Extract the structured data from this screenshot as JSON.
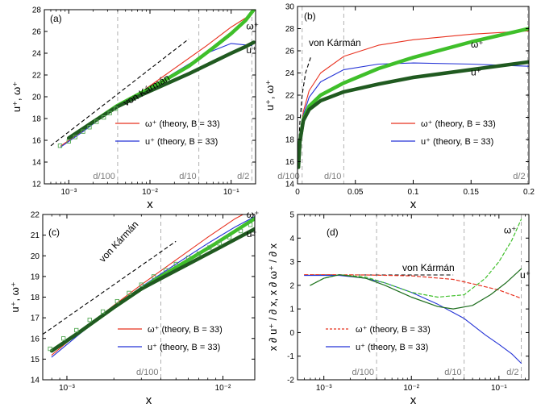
{
  "colors": {
    "red": "#e8311f",
    "blue": "#2433d6",
    "green_thick": "#3fbf2a",
    "green_dark": "#205a20",
    "green_theory": "#1e6e1e",
    "marker": "#55aa55",
    "dash_gray": "#b0b0b0",
    "ref_gray": "#7a7a7a"
  },
  "chart_data": [
    {
      "panel": "(a)",
      "type": "line",
      "xscale": "log",
      "xlim": [
        0.0005,
        0.2
      ],
      "ylim": [
        12,
        28
      ],
      "xlabel": "x",
      "ylabel": "u⁺, ω⁺",
      "xticks": [
        {
          "v": 0.001,
          "label": "10⁻³"
        },
        {
          "v": 0.01,
          "label": "10⁻²"
        },
        {
          "v": 0.1,
          "label": "10⁻¹"
        }
      ],
      "yticks": [
        12,
        14,
        16,
        18,
        20,
        22,
        24,
        26,
        28
      ],
      "vlines": [
        {
          "x": 0.004,
          "label": "d/100"
        },
        {
          "x": 0.04,
          "label": "d/10"
        },
        {
          "x": 0.18,
          "label": "d/2"
        }
      ],
      "reference": {
        "label": "von Kármán",
        "x": [
          0.0006,
          0.03
        ],
        "y": [
          15.5,
          25.3
        ]
      },
      "series": [
        {
          "name": "ω⁺ (theory, B = 33)",
          "style": "red",
          "x": [
            0.0008,
            0.0015,
            0.003,
            0.005,
            0.01,
            0.02,
            0.05,
            0.1,
            0.18
          ],
          "y": [
            15.5,
            16.9,
            18.5,
            19.5,
            21.0,
            22.6,
            24.7,
            26.4,
            27.6
          ]
        },
        {
          "name": "u⁺ (theory, B = 33)",
          "style": "blue",
          "x": [
            0.0008,
            0.0015,
            0.003,
            0.005,
            0.01,
            0.02,
            0.05,
            0.1,
            0.18
          ],
          "y": [
            15.4,
            16.8,
            18.5,
            19.4,
            20.8,
            22.2,
            24.0,
            24.9,
            24.7
          ]
        },
        {
          "name": "ω⁺",
          "style": "green_thick",
          "x": [
            0.001,
            0.002,
            0.004,
            0.008,
            0.015,
            0.03,
            0.06,
            0.1,
            0.15,
            0.19
          ],
          "y": [
            16.2,
            17.7,
            19.2,
            20.4,
            21.5,
            22.8,
            24.5,
            25.8,
            27.0,
            28.0
          ]
        },
        {
          "name": "u⁺",
          "style": "green_dark",
          "x": [
            0.001,
            0.002,
            0.004,
            0.008,
            0.015,
            0.03,
            0.06,
            0.1,
            0.15,
            0.19
          ],
          "y": [
            16.2,
            17.7,
            19.1,
            20.2,
            21.1,
            22.1,
            23.2,
            24.0,
            24.6,
            25.0
          ]
        },
        {
          "name": "markers",
          "style": "marker",
          "x": [
            0.00078,
            0.001,
            0.0012,
            0.0015,
            0.0018,
            0.0022,
            0.0027,
            0.0032,
            0.0038
          ],
          "y": [
            15.5,
            15.9,
            16.3,
            16.8,
            17.2,
            17.7,
            18.1,
            18.5,
            18.9
          ]
        }
      ],
      "legend": [
        "ω⁺ (theory, B = 33)",
        "u⁺ (theory, B = 33)"
      ],
      "curve_labels": [
        {
          "text": "ω⁺",
          "x": 0.14,
          "y": 26.2
        },
        {
          "text": "u⁺",
          "x": 0.14,
          "y": 24.0
        }
      ]
    },
    {
      "panel": "(b)",
      "type": "line",
      "xscale": "linear",
      "xlim": [
        0,
        0.2
      ],
      "ylim": [
        14,
        30
      ],
      "xlabel": "x",
      "ylabel": "u⁺, ω⁺",
      "xticks": [
        {
          "v": 0,
          "label": "0"
        },
        {
          "v": 0.05,
          "label": "0.05"
        },
        {
          "v": 0.1,
          "label": "0.1"
        },
        {
          "v": 0.15,
          "label": "0.15"
        },
        {
          "v": 0.2,
          "label": "0.2"
        }
      ],
      "yticks": [
        14,
        16,
        18,
        20,
        22,
        24,
        26,
        28,
        30
      ],
      "vlines": [
        {
          "x": 0.004,
          "label": "d/100"
        },
        {
          "x": 0.04,
          "label": "d/10"
        },
        {
          "x": 0.199,
          "label": "d/2"
        }
      ],
      "reference": {
        "label": "von Kármán",
        "x": [
          0.001,
          0.002,
          0.004,
          0.007,
          0.012
        ],
        "y": [
          17.0,
          19.5,
          22.0,
          24.0,
          25.6
        ]
      },
      "series": [
        {
          "name": "ω⁺ (theory, B = 33)",
          "style": "red",
          "x": [
            0.0008,
            0.002,
            0.005,
            0.01,
            0.02,
            0.04,
            0.07,
            0.1,
            0.15,
            0.2
          ],
          "y": [
            15.5,
            18.0,
            20.5,
            22.4,
            24.0,
            25.5,
            26.5,
            27.0,
            27.5,
            27.8
          ]
        },
        {
          "name": "u⁺ (theory, B = 33)",
          "style": "blue",
          "x": [
            0.0008,
            0.002,
            0.005,
            0.01,
            0.02,
            0.04,
            0.07,
            0.1,
            0.15,
            0.2
          ],
          "y": [
            15.4,
            17.9,
            20.2,
            21.8,
            23.2,
            24.3,
            24.8,
            24.9,
            24.8,
            24.6
          ]
        },
        {
          "name": "ω⁺",
          "style": "green_thick",
          "x": [
            0.0008,
            0.002,
            0.005,
            0.01,
            0.02,
            0.04,
            0.07,
            0.1,
            0.15,
            0.2
          ],
          "y": [
            15.5,
            17.8,
            19.8,
            21.0,
            22.0,
            23.1,
            24.4,
            25.4,
            26.8,
            28.0
          ]
        },
        {
          "name": "u⁺",
          "style": "green_dark",
          "x": [
            0.0008,
            0.002,
            0.005,
            0.01,
            0.02,
            0.04,
            0.07,
            0.1,
            0.15,
            0.2
          ],
          "y": [
            15.5,
            17.8,
            19.7,
            20.7,
            21.5,
            22.3,
            23.0,
            23.6,
            24.3,
            25.0
          ]
        }
      ],
      "legend": [
        "ω⁺ (theory, B = 33)",
        "u⁺ (theory, B = 33)"
      ],
      "curve_labels": [
        {
          "text": "ω⁺",
          "x": 0.147,
          "y": 26.3
        },
        {
          "text": "u⁺",
          "x": 0.147,
          "y": 23.8
        }
      ]
    },
    {
      "panel": "(c)",
      "type": "line",
      "xscale": "log",
      "xlim": [
        0.0007,
        0.016
      ],
      "ylim": [
        14,
        22
      ],
      "xlabel": "x",
      "ylabel": "u⁺, ω⁺",
      "xticks": [
        {
          "v": 0.001,
          "label": "10⁻³"
        },
        {
          "v": 0.01,
          "label": "10⁻²"
        }
      ],
      "yticks": [
        14,
        15,
        16,
        17,
        18,
        19,
        20,
        21,
        22
      ],
      "vlines": [
        {
          "x": 0.004,
          "label": "d/100"
        }
      ],
      "reference": {
        "label": "von Kármán",
        "x": [
          0.0007,
          0.005
        ],
        "y": [
          16.2,
          20.7
        ]
      },
      "series": [
        {
          "name": "ω⁺ (theory, B = 33)",
          "style": "red",
          "x": [
            0.0008,
            0.0012,
            0.002,
            0.003,
            0.005,
            0.008,
            0.012,
            0.016
          ],
          "y": [
            15.2,
            16.3,
            17.6,
            18.6,
            19.8,
            20.9,
            21.8,
            22.3
          ]
        },
        {
          "name": "u⁺ (theory, B = 33)",
          "style": "blue",
          "x": [
            0.0008,
            0.0012,
            0.002,
            0.003,
            0.005,
            0.008,
            0.012,
            0.016
          ],
          "y": [
            15.1,
            16.2,
            17.5,
            18.5,
            19.6,
            20.6,
            21.4,
            21.9
          ]
        },
        {
          "name": "ω⁺",
          "style": "green_thick",
          "x": [
            0.0008,
            0.0012,
            0.002,
            0.003,
            0.004,
            0.006,
            0.009,
            0.012,
            0.016
          ],
          "y": [
            15.4,
            16.3,
            17.5,
            18.4,
            19.0,
            19.8,
            20.6,
            21.2,
            21.8
          ]
        },
        {
          "name": "u⁺",
          "style": "green_dark",
          "x": [
            0.0008,
            0.0012,
            0.002,
            0.003,
            0.004,
            0.006,
            0.009,
            0.012,
            0.016
          ],
          "y": [
            15.4,
            16.3,
            17.5,
            18.4,
            18.9,
            19.6,
            20.3,
            20.8,
            21.3
          ]
        },
        {
          "name": "markers",
          "style": "marker",
          "x": [
            0.00078,
            0.00095,
            0.00115,
            0.0014,
            0.0017,
            0.0021,
            0.0025,
            0.003,
            0.0036,
            0.0043,
            0.005,
            0.006,
            0.007,
            0.0082,
            0.0095,
            0.011,
            0.013,
            0.015
          ],
          "y": [
            15.5,
            16.0,
            16.4,
            16.9,
            17.3,
            17.8,
            18.2,
            18.6,
            19.0,
            19.3,
            19.6,
            19.9,
            20.1,
            20.4,
            20.6,
            20.9,
            21.2,
            21.5
          ]
        }
      ],
      "legend": [
        "ω⁺ (theory, B = 33)",
        "u⁺ (theory, B = 33)"
      ],
      "curve_labels": [
        {
          "text": "ω⁺",
          "x": 0.0135,
          "y": 21.85
        },
        {
          "text": "u⁺",
          "x": 0.0135,
          "y": 20.9
        }
      ]
    },
    {
      "panel": "(d)",
      "type": "line",
      "xscale": "log",
      "xlim": [
        0.0005,
        0.22
      ],
      "ylim": [
        -2,
        5
      ],
      "xlabel": "x",
      "ylabel": "x ∂ u⁺ / ∂ x, x ∂ ω⁺ / ∂ x",
      "xticks": [
        {
          "v": 0.001,
          "label": "10⁻³"
        },
        {
          "v": 0.01,
          "label": "10⁻²"
        },
        {
          "v": 0.1,
          "label": "10⁻¹"
        }
      ],
      "yticks": [
        -2,
        -1,
        0,
        1,
        2,
        3,
        4,
        5
      ],
      "vlines": [
        {
          "x": 0.004,
          "label": "d/100"
        },
        {
          "x": 0.04,
          "label": "d/10"
        },
        {
          "x": 0.18,
          "label": "d/2"
        }
      ],
      "reference": {
        "label": "von Kármán",
        "x": [
          0.0006,
          0.03
        ],
        "y": [
          2.44,
          2.44
        ]
      },
      "series": [
        {
          "name": "ω⁺ (theory, B = 33)",
          "style": "red_dashed",
          "x": [
            0.0006,
            0.001,
            0.003,
            0.01,
            0.03,
            0.06,
            0.1,
            0.18
          ],
          "y": [
            2.45,
            2.45,
            2.44,
            2.4,
            2.25,
            2.0,
            1.8,
            1.45
          ]
        },
        {
          "name": "u⁺ (theory, B = 33)",
          "style": "blue",
          "x": [
            0.0006,
            0.001,
            0.0015,
            0.003,
            0.005,
            0.01,
            0.02,
            0.04,
            0.07,
            0.1,
            0.14,
            0.18
          ],
          "y": [
            2.42,
            2.42,
            2.42,
            2.3,
            2.1,
            1.7,
            1.2,
            0.6,
            -0.1,
            -0.5,
            -0.9,
            -1.3
          ]
        },
        {
          "name": "ω⁺",
          "style": "green_dashed",
          "x": [
            0.0007,
            0.001,
            0.0015,
            0.003,
            0.005,
            0.01,
            0.02,
            0.04,
            0.07,
            0.1,
            0.14,
            0.18
          ],
          "y": [
            2.0,
            2.3,
            2.45,
            2.35,
            2.1,
            1.7,
            1.5,
            1.6,
            2.3,
            3.0,
            3.9,
            4.8
          ]
        },
        {
          "name": "u⁺",
          "style": "green_solid",
          "x": [
            0.0007,
            0.001,
            0.0015,
            0.003,
            0.005,
            0.01,
            0.02,
            0.03,
            0.05,
            0.08,
            0.12,
            0.18
          ],
          "y": [
            2.0,
            2.3,
            2.45,
            2.3,
            2.0,
            1.5,
            1.1,
            1.0,
            1.15,
            1.6,
            2.1,
            2.7
          ]
        }
      ],
      "legend": [
        "ω⁺ (theory, B = 33)",
        "u⁺ (theory, B = 33)"
      ],
      "curve_labels": [
        {
          "text": "ω⁺",
          "x": 0.1,
          "y": 4.2
        },
        {
          "text": "u⁺",
          "x": 0.16,
          "y": 2.3
        }
      ]
    }
  ]
}
